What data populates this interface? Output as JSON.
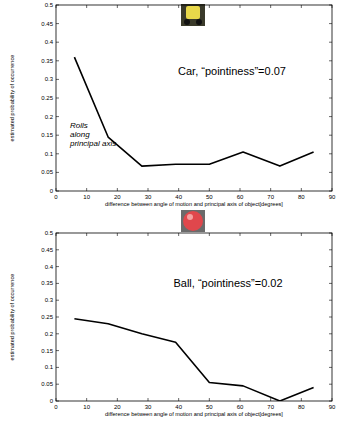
{
  "chart_data": [
    {
      "type": "line",
      "title": "Car, “pointiness”=0.07",
      "annotations": [
        "Rolls",
        "along",
        "principal axis"
      ],
      "x_label": "difference between angle of motion and principal axis of object[degrees]",
      "y_label": "estimated probability of occurrence",
      "x": [
        6,
        17,
        28,
        39,
        50,
        61,
        73,
        84
      ],
      "values": [
        0.36,
        0.145,
        0.067,
        0.072,
        0.072,
        0.105,
        0.067,
        0.105
      ],
      "color": "#000000",
      "xlim": [
        0,
        90
      ],
      "ylim": [
        0,
        0.5
      ],
      "xticks": [
        0,
        10,
        20,
        30,
        40,
        50,
        60,
        70,
        80,
        90
      ],
      "yticks": [
        0,
        0.05,
        0.1,
        0.15,
        0.2,
        0.25,
        0.3,
        0.35,
        0.4,
        0.45,
        0.5
      ]
    },
    {
      "type": "line",
      "title": "Ball, “pointiness”=0.02",
      "x_label": "difference between angle of motion and principal axis of object[degrees]",
      "y_label": "estimated probability of occurrence",
      "x": [
        6,
        17,
        28,
        39,
        50,
        61,
        73,
        84
      ],
      "values": [
        0.245,
        0.23,
        0.2,
        0.175,
        0.055,
        0.045,
        0,
        0.04
      ],
      "color": "#000000",
      "xlim": [
        0,
        90
      ],
      "ylim": [
        0,
        0.5
      ],
      "xticks": [
        0,
        10,
        20,
        30,
        40,
        50,
        60,
        70,
        80,
        90
      ],
      "yticks": [
        0,
        0.05,
        0.1,
        0.15,
        0.2,
        0.25,
        0.3,
        0.35,
        0.4,
        0.45,
        0.5
      ]
    }
  ]
}
